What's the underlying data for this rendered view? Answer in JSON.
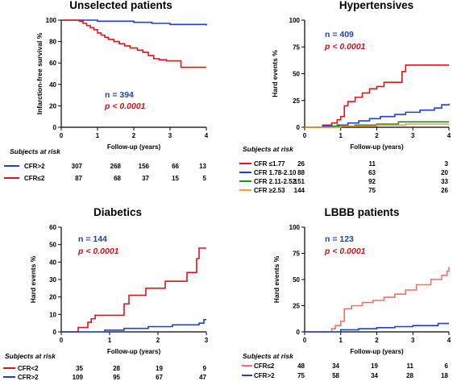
{
  "chart_data": [
    {
      "type": "line",
      "step": true,
      "title": "Unselected patients",
      "xlabel": "Follow-up (years)",
      "ylabel": "Infarction-free survival %",
      "xlim": [
        0,
        4
      ],
      "ylim": [
        0,
        100
      ],
      "xticks": [
        "0",
        "1",
        "2",
        "3",
        "4"
      ],
      "yticks": [
        "0",
        "20",
        "40",
        "60",
        "80",
        "100"
      ],
      "n_text": "n = 394",
      "p_text": "p < 0.0001",
      "series": [
        {
          "name": "CFR>2",
          "color": "#1f3fd8",
          "x": [
            0,
            1.0,
            2.0,
            2.5,
            3.0,
            4.0
          ],
          "y": [
            100,
            99,
            98,
            97,
            96,
            95
          ]
        },
        {
          "name": "CFR≤2",
          "color": "#e0141b",
          "x": [
            0,
            0.4,
            0.5,
            0.6,
            0.7,
            0.8,
            0.9,
            1.0,
            1.1,
            1.2,
            1.3,
            1.45,
            1.6,
            1.75,
            1.9,
            2.1,
            2.25,
            2.4,
            2.55,
            2.7,
            2.9,
            3.15,
            3.3,
            4.0
          ],
          "y": [
            100,
            100,
            99,
            97,
            95,
            93,
            91,
            88,
            86,
            84,
            82,
            80,
            78,
            76,
            74,
            72,
            70,
            67,
            64,
            63,
            62,
            62,
            56,
            56
          ]
        }
      ],
      "risk_title": "Subjects at risk",
      "risk_table": [
        {
          "name": "CFR>2",
          "color": "#1f3fd8",
          "values": [
            "307",
            "268",
            "156",
            "66",
            "13"
          ]
        },
        {
          "name": "CFR≤2",
          "color": "#e0141b",
          "values": [
            "87",
            "68",
            "37",
            "15",
            "5"
          ]
        }
      ]
    },
    {
      "type": "line",
      "step": true,
      "title": "Hypertensives",
      "xlabel": "Follow-up (years)",
      "ylabel": "Hard events %",
      "xlim": [
        0,
        4
      ],
      "ylim": [
        0,
        100
      ],
      "xticks": [
        "0",
        "1",
        "2",
        "3",
        "4"
      ],
      "yticks": [
        "0",
        "25",
        "50",
        "75",
        "100"
      ],
      "n_text": "n = 409",
      "p_text": "p < 0.0001",
      "series": [
        {
          "name": "CFR ≤1.77",
          "color": "#e0141b",
          "x": [
            0,
            0.5,
            0.75,
            0.9,
            1.0,
            1.1,
            1.2,
            1.4,
            1.6,
            1.8,
            2.0,
            2.2,
            2.7,
            2.8,
            4.0
          ],
          "y": [
            0,
            2,
            4,
            7,
            10,
            20,
            24,
            28,
            32,
            36,
            38,
            42,
            52,
            58,
            58
          ]
        },
        {
          "name": "CFR 1.78-2.10",
          "color": "#1f3fd8",
          "x": [
            0,
            0.5,
            0.9,
            1.2,
            1.5,
            1.8,
            2.1,
            2.5,
            2.8,
            3.2,
            3.6,
            3.8,
            4.0
          ],
          "y": [
            0,
            1,
            2,
            4,
            6,
            8,
            10,
            12,
            14,
            16,
            18,
            21,
            22
          ]
        },
        {
          "name": "CFR 2.11-2.52",
          "color": "#1e8c2a",
          "x": [
            0,
            0.8,
            1.4,
            2.0,
            2.6,
            4.0
          ],
          "y": [
            0,
            1,
            2,
            3,
            5,
            5
          ]
        },
        {
          "name": "CFR ≥2.53",
          "color": "#f0a030",
          "x": [
            0,
            1.0,
            2.0,
            2.8,
            4.0
          ],
          "y": [
            0,
            1,
            2,
            3,
            3
          ]
        }
      ],
      "risk_title": "Subjects at risk",
      "risk_table": [
        {
          "name": "CFR ≤1.77",
          "color": "#e0141b",
          "values": [
            "26",
            "11",
            "3"
          ]
        },
        {
          "name": "CFR 1.78-2.10",
          "color": "#1f3fd8",
          "values": [
            "88",
            "63",
            "20"
          ]
        },
        {
          "name": "CFR 2.11-2.52",
          "color": "#1e8c2a",
          "values": [
            "151",
            "92",
            "33"
          ]
        },
        {
          "name": "CFR ≥2.53",
          "color": "#f0a030",
          "values": [
            "144",
            "75",
            "26"
          ]
        }
      ]
    },
    {
      "type": "line",
      "step": true,
      "title": "Diabetics",
      "xlabel": "Follow-up (years)",
      "ylabel": "Hard events %",
      "xlim": [
        0,
        3
      ],
      "ylim": [
        0,
        60
      ],
      "xticks": [
        "0",
        "1",
        "2",
        "3"
      ],
      "yticks": [
        "0",
        "10",
        "20",
        "30",
        "40",
        "50",
        "60"
      ],
      "n_text": "n = 144",
      "p_text": "p < 0.0001",
      "series": [
        {
          "name": "CFR<2",
          "color": "#e0141b",
          "x": [
            0,
            0.35,
            0.55,
            0.62,
            0.7,
            1.3,
            1.4,
            1.75,
            2.15,
            2.6,
            2.8,
            2.85,
            3.0
          ],
          "y": [
            0,
            2.5,
            5.5,
            7.5,
            9.5,
            16,
            21,
            25,
            29,
            34,
            42,
            48,
            48
          ]
        },
        {
          "name": "CFR>2",
          "color": "#1f3fd8",
          "x": [
            0,
            0.6,
            0.9,
            1.3,
            1.8,
            2.3,
            2.85,
            2.95,
            3.0
          ],
          "y": [
            0,
            0,
            1,
            2,
            3,
            4,
            5,
            7,
            7
          ]
        }
      ],
      "risk_title": "Subjects at risk",
      "risk_table": [
        {
          "name": "CFR<2",
          "color": "#e0141b",
          "values": [
            "35",
            "28",
            "19",
            "9"
          ]
        },
        {
          "name": "CFR>2",
          "color": "#1f3fd8",
          "values": [
            "109",
            "95",
            "67",
            "47"
          ]
        }
      ]
    },
    {
      "type": "line",
      "step": true,
      "title": "LBBB patients",
      "xlabel": "Follow-up (years)",
      "ylabel": "Hard events %",
      "xlim": [
        0,
        4
      ],
      "ylim": [
        0,
        100
      ],
      "xticks": [
        "0",
        "1",
        "2",
        "3",
        "4"
      ],
      "yticks": [
        "0",
        "25",
        "50",
        "75",
        "100"
      ],
      "n_text": "n = 123",
      "p_text": "p < 0.0001",
      "series": [
        {
          "name": "CFR≤2",
          "color": "#f0706f",
          "x": [
            0,
            0.75,
            0.85,
            1.0,
            1.1,
            1.3,
            1.6,
            1.9,
            2.2,
            2.5,
            2.8,
            3.1,
            3.5,
            3.8,
            3.95,
            4.0
          ],
          "y": [
            0,
            3,
            6,
            10,
            22,
            25,
            28,
            30,
            33,
            36,
            40,
            45,
            50,
            54,
            58,
            62
          ]
        },
        {
          "name": "CFR>2",
          "color": "#1f3fd8",
          "x": [
            0,
            1.0,
            1.5,
            2.0,
            2.5,
            3.0,
            3.7,
            4.0
          ],
          "y": [
            0,
            2,
            3,
            4,
            5,
            6,
            8,
            8
          ]
        }
      ],
      "risk_title": "Subjects at risk",
      "risk_table": [
        {
          "name": "CFR≤2",
          "color": "#f0706f",
          "values": [
            "48",
            "34",
            "19",
            "11",
            "6"
          ]
        },
        {
          "name": "CFR>2",
          "color": "#1f3fd8",
          "values": [
            "75",
            "58",
            "34",
            "28",
            "18"
          ]
        }
      ]
    }
  ]
}
